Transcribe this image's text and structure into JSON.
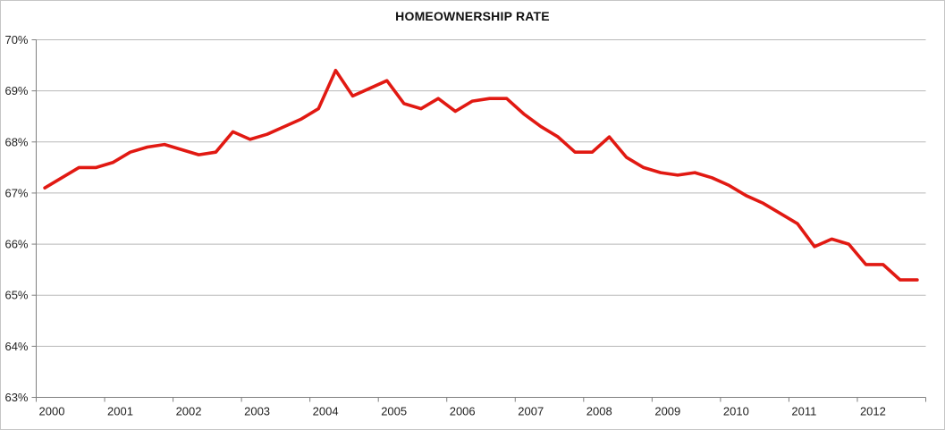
{
  "chart_data": {
    "type": "line",
    "title": "HOMEOWNERSHIP RATE",
    "xlabel": "",
    "ylabel": "",
    "x_frequency": "quarterly",
    "categories": [
      "2000",
      "2001",
      "2002",
      "2003",
      "2004",
      "2005",
      "2006",
      "2007",
      "2008",
      "2009",
      "2010",
      "2011",
      "2012"
    ],
    "y_tick_labels": [
      "70%",
      "69%",
      "68%",
      "67%",
      "66%",
      "65%",
      "64%",
      "63%"
    ],
    "y_tick_values": [
      70,
      69,
      68,
      67,
      66,
      65,
      64,
      63
    ],
    "ylim": [
      63,
      70
    ],
    "grid": "horizontal-major",
    "legend": "none",
    "series": [
      {
        "name": "Homeownership rate (%)",
        "values": [
          67.1,
          67.3,
          67.5,
          67.5,
          67.6,
          67.8,
          67.9,
          67.95,
          67.85,
          67.75,
          67.8,
          68.2,
          68.05,
          68.15,
          68.3,
          68.45,
          68.65,
          69.4,
          68.9,
          69.05,
          69.2,
          68.75,
          68.65,
          68.85,
          68.6,
          68.8,
          68.85,
          68.85,
          68.55,
          68.3,
          68.1,
          67.8,
          67.8,
          68.1,
          67.7,
          67.5,
          67.4,
          67.35,
          67.4,
          67.3,
          67.15,
          66.95,
          66.8,
          66.6,
          66.4,
          65.95,
          66.1,
          66.0,
          65.6,
          65.6,
          65.3,
          65.3
        ]
      }
    ],
    "colors": {
      "line": "#e11912",
      "gridline": "#b9b9b9",
      "axis": "#7f7f7f",
      "label": "#1f1f1f",
      "frame_border": "#c6c6c6",
      "background": "#ffffff"
    }
  }
}
